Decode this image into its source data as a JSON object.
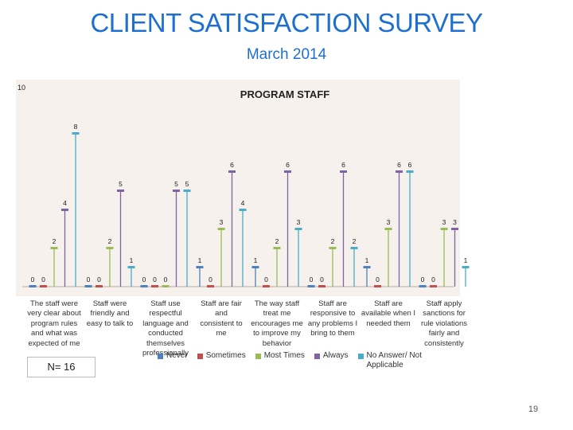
{
  "slide": {
    "title": "CLIENT SATISFACTION SURVEY",
    "subtitle": "March 2014",
    "page_number": "19",
    "n_label": "N= 16"
  },
  "colors": {
    "never": "#4f81bd",
    "sometimes": "#c0504d",
    "most_times": "#9bbb59",
    "always": "#8064a2",
    "no_answer": "#4bacc6",
    "background": "#f6f1ec",
    "title": "#1f6fd1"
  },
  "chart_data": {
    "type": "bar",
    "title": "PROGRAM STAFF",
    "y_top_label": "10",
    "ylim": [
      0,
      10
    ],
    "categories": [
      "The staff were very clear about program rules and what was expected of me",
      "Staff were friendly and easy to talk to",
      "Staff use respectful language and conducted themselves professionally",
      "Staff are fair and consistent to me",
      "The way staff treat me encourages me to improve my behavior",
      "Staff are responsive to any problems I bring to them",
      "Staff are available when I needed them",
      "Staff apply sanctions for rule violations fairly and consistently"
    ],
    "category_lines": [
      [
        "The staff were",
        "very clear about",
        "program rules",
        "and what was",
        "expected of me"
      ],
      [
        "Staff were",
        "friendly and",
        "easy to talk to"
      ],
      [
        "Staff use",
        "respectful",
        "language and",
        "conducted",
        "themselves",
        "professionally"
      ],
      [
        "Staff are fair and",
        "consistent to",
        "me"
      ],
      [
        "The way staff",
        "treat me",
        "encourages me",
        "to improve my",
        "behavior"
      ],
      [
        "Staff are",
        "responsive to",
        "any problems I",
        "bring to them"
      ],
      [
        "Staff are",
        "available when I",
        "needed them"
      ],
      [
        "Staff apply",
        "sanctions for",
        "rule violations",
        "fairly and",
        "consistently"
      ]
    ],
    "series": [
      {
        "name": "Never",
        "values": [
          0,
          0,
          0,
          1,
          1,
          0,
          1,
          0
        ]
      },
      {
        "name": "Sometimes",
        "values": [
          0,
          0,
          0,
          0,
          0,
          0,
          0,
          0
        ]
      },
      {
        "name": "Most Times",
        "values": [
          2,
          2,
          0,
          3,
          2,
          2,
          3,
          3
        ]
      },
      {
        "name": "Always",
        "values": [
          4,
          5,
          5,
          6,
          6,
          6,
          6,
          3
        ]
      },
      {
        "name": "No Answer/ Not Applicable",
        "values": [
          8,
          1,
          5,
          4,
          3,
          2,
          6,
          1
        ]
      }
    ],
    "legend_position": "bottom"
  }
}
